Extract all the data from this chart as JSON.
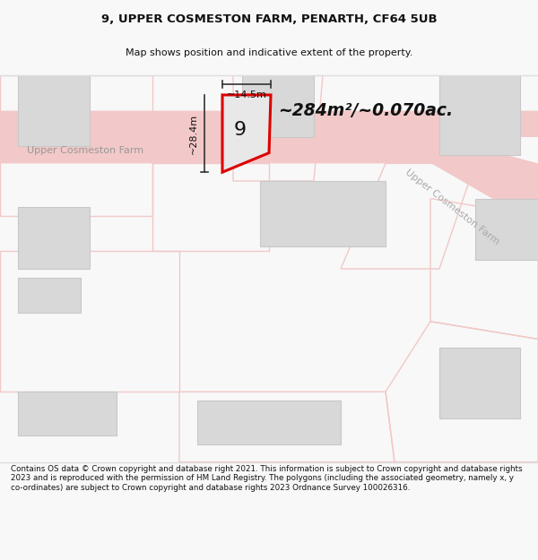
{
  "title": "9, UPPER COSMESTON FARM, PENARTH, CF64 5UB",
  "subtitle": "Map shows position and indicative extent of the property.",
  "area_text": "~284m²/~0.070ac.",
  "label_9": "9",
  "dim_height": "~28.4m",
  "dim_width": "~14.5m",
  "road_label": "Upper Cosmeston Farm",
  "road_label2": "Upper Cosmeston Farm",
  "footer": "Contains OS data © Crown copyright and database right 2021. This information is subject to Crown copyright and database rights 2023 and is reproduced with the permission of HM Land Registry. The polygons (including the associated geometry, namely x, y co-ordinates) are subject to Crown copyright and database rights 2023 Ordnance Survey 100026316.",
  "bg_color": "#f8f8f8",
  "map_bg": "#ffffff",
  "plot_fill": "#e8e8e8",
  "plot_edge": "#dd0000",
  "building_fill": "#d8d8d8",
  "building_edge": "#c8c8c8",
  "road_color": "#f2c8c8",
  "road_edge": "#e8b0b0",
  "dim_line_color": "#333333",
  "text_dark": "#111111",
  "text_gray": "#aaaaaa",
  "footer_color": "#111111",
  "sep_color": "#dddddd"
}
